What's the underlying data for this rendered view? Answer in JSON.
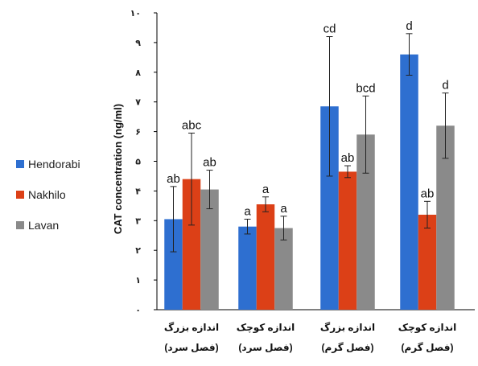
{
  "chart_data": {
    "type": "bar",
    "ylabel": "CAT concentration (ng/ml)",
    "xlabel": "",
    "title": "",
    "ylim": [
      0,
      10
    ],
    "yticks": [
      {
        "value": 0,
        "label": "٠"
      },
      {
        "value": 1,
        "label": "١"
      },
      {
        "value": 2,
        "label": "٢"
      },
      {
        "value": 3,
        "label": "٣"
      },
      {
        "value": 4,
        "label": "۴"
      },
      {
        "value": 5,
        "label": "۵"
      },
      {
        "value": 6,
        "label": "۶"
      },
      {
        "value": 7,
        "label": "٧"
      },
      {
        "value": 8,
        "label": "٨"
      },
      {
        "value": 9,
        "label": "٩"
      },
      {
        "value": 10,
        "label": "١٠"
      }
    ],
    "categories": [
      {
        "line1": "اندازه بزرگ",
        "line2": "(فصل سرد)"
      },
      {
        "line1": "اندازه کوچک",
        "line2": "(فصل سرد)"
      },
      {
        "line1": "اندازه بزرگ",
        "line2": "(فصل گرم)"
      },
      {
        "line1": "اندازه کوچک",
        "line2": "(فصل گرم)"
      }
    ],
    "series": [
      {
        "name": "Hendorabi",
        "color": "#2e6fd0",
        "values": [
          3.05,
          2.8,
          6.85,
          8.6
        ],
        "errors": [
          1.1,
          0.25,
          2.35,
          0.7
        ],
        "labels": [
          "ab",
          "a",
          "cd",
          "d"
        ]
      },
      {
        "name": "Nakhilo",
        "color": "#dc4017",
        "values": [
          4.4,
          3.55,
          4.65,
          3.2
        ],
        "errors": [
          1.55,
          0.25,
          0.2,
          0.45
        ],
        "labels": [
          "abc",
          "a",
          "ab",
          "ab"
        ]
      },
      {
        "name": "Lavan",
        "color": "#8a8a8a",
        "values": [
          4.05,
          2.75,
          5.9,
          6.2
        ],
        "errors": [
          0.65,
          0.4,
          1.3,
          1.1
        ],
        "labels": [
          "ab",
          "a",
          "bcd",
          "d"
        ]
      }
    ],
    "legend_position": "left",
    "grid": false
  }
}
